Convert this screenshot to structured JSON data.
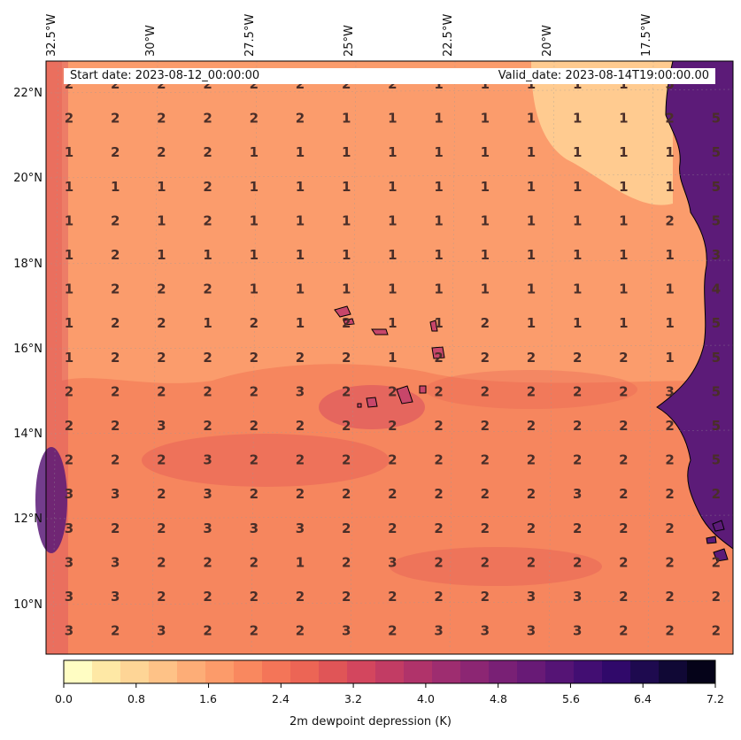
{
  "map": {
    "start_date": "Start date: 2023-08-12_00:00:00",
    "valid_date": "Valid_date: 2023-08-14T19:00:00.00",
    "lon_labels": [
      "32.5°W",
      "30°W",
      "27.5°W",
      "25°W",
      "22.5°W",
      "20°W",
      "17.5°W"
    ],
    "lat_labels": [
      "22°N",
      "20°N",
      "18°N",
      "16°N",
      "14°N",
      "12°N",
      "10°N"
    ],
    "grid_values": [
      [
        "2",
        "2",
        "2",
        "2",
        "2",
        "2",
        "2",
        "2",
        "1",
        "1",
        "1",
        "1",
        "1",
        "5"
      ],
      [
        "2",
        "2",
        "2",
        "2",
        "2",
        "2",
        "1",
        "1",
        "1",
        "1",
        "1",
        "1",
        "1",
        "2",
        "5"
      ],
      [
        "1",
        "2",
        "2",
        "2",
        "1",
        "1",
        "1",
        "1",
        "1",
        "1",
        "1",
        "1",
        "1",
        "1",
        "5"
      ],
      [
        "1",
        "1",
        "1",
        "2",
        "1",
        "1",
        "1",
        "1",
        "1",
        "1",
        "1",
        "1",
        "1",
        "1",
        "5"
      ],
      [
        "1",
        "2",
        "1",
        "2",
        "1",
        "1",
        "1",
        "1",
        "1",
        "1",
        "1",
        "1",
        "1",
        "2",
        "5"
      ],
      [
        "1",
        "2",
        "1",
        "1",
        "1",
        "1",
        "1",
        "1",
        "1",
        "1",
        "1",
        "1",
        "1",
        "1",
        "3"
      ],
      [
        "1",
        "2",
        "2",
        "2",
        "1",
        "1",
        "1",
        "1",
        "1",
        "1",
        "1",
        "1",
        "1",
        "1",
        "4"
      ],
      [
        "1",
        "2",
        "2",
        "1",
        "2",
        "1",
        "2",
        "1",
        "1",
        "2",
        "1",
        "1",
        "1",
        "1",
        "5"
      ],
      [
        "1",
        "2",
        "2",
        "2",
        "2",
        "2",
        "2",
        "1",
        "2",
        "2",
        "2",
        "2",
        "2",
        "1",
        "5"
      ],
      [
        "2",
        "2",
        "2",
        "2",
        "2",
        "3",
        "2",
        "2",
        "2",
        "2",
        "2",
        "2",
        "2",
        "3",
        "5"
      ],
      [
        "2",
        "2",
        "3",
        "2",
        "2",
        "2",
        "2",
        "2",
        "2",
        "2",
        "2",
        "2",
        "2",
        "2",
        "5"
      ],
      [
        "2",
        "2",
        "2",
        "3",
        "2",
        "2",
        "2",
        "2",
        "2",
        "2",
        "2",
        "2",
        "2",
        "2",
        "5"
      ],
      [
        "3",
        "3",
        "2",
        "3",
        "2",
        "2",
        "2",
        "2",
        "2",
        "2",
        "2",
        "3",
        "2",
        "2",
        "2"
      ],
      [
        "3",
        "2",
        "2",
        "3",
        "3",
        "3",
        "2",
        "2",
        "2",
        "2",
        "2",
        "2",
        "2",
        "2",
        ""
      ],
      [
        "3",
        "3",
        "2",
        "2",
        "2",
        "1",
        "2",
        "3",
        "2",
        "2",
        "2",
        "2",
        "2",
        "2",
        "2"
      ],
      [
        "3",
        "3",
        "2",
        "2",
        "2",
        "2",
        "2",
        "2",
        "2",
        "2",
        "3",
        "3",
        "2",
        "2",
        "2"
      ],
      [
        "3",
        "2",
        "3",
        "2",
        "2",
        "2",
        "3",
        "2",
        "3",
        "3",
        "3",
        "3",
        "2",
        "2",
        "2"
      ]
    ]
  },
  "colorbar": {
    "ticks": [
      "0.0",
      "0.8",
      "1.6",
      "2.4",
      "3.2",
      "4.0",
      "4.8",
      "5.6",
      "6.4",
      "7.2"
    ],
    "title": "2m dewpoint depression (K)",
    "levels": [
      "#fffdc3",
      "#fee8a5",
      "#fed596",
      "#fec287",
      "#fdad77",
      "#fc9b6a",
      "#f9885f",
      "#f47558",
      "#ec6555",
      "#e05557",
      "#d3465e",
      "#c23c64",
      "#b0336a",
      "#9e2d70",
      "#8c2673",
      "#792075",
      "#681a76",
      "#551475",
      "#420e72",
      "#30096a",
      "#1e0a4f",
      "#100835",
      "#050319"
    ]
  }
}
